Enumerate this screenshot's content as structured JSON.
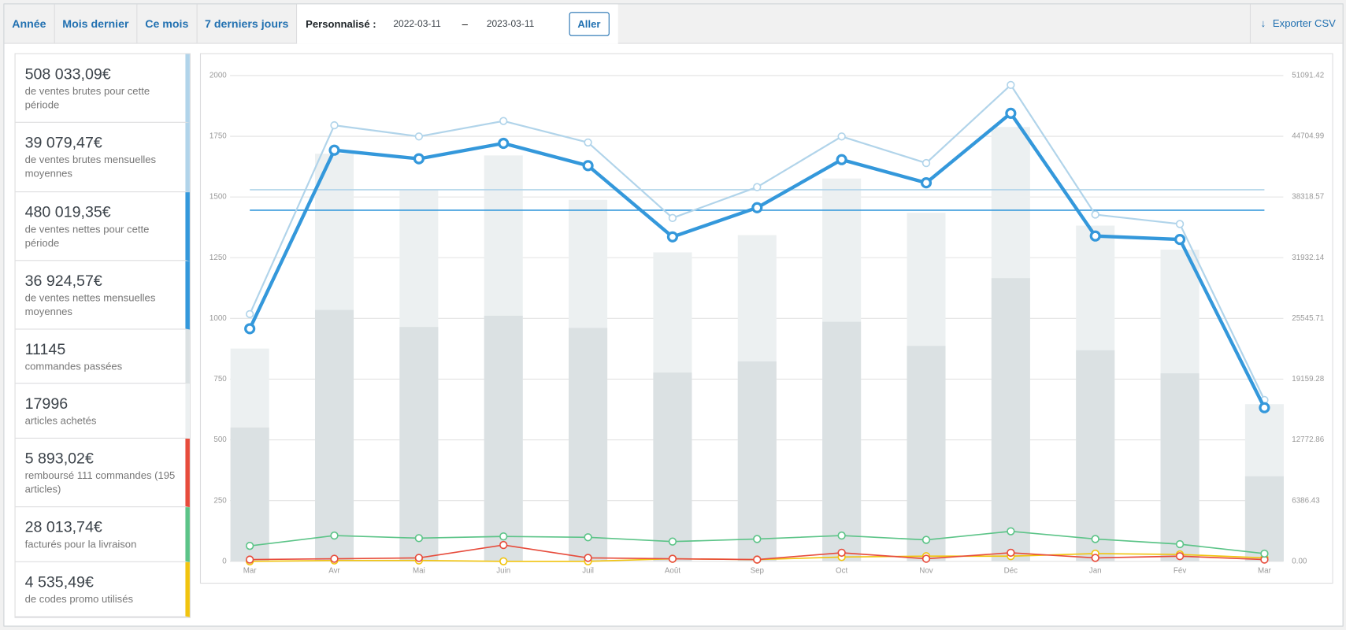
{
  "tabs": [
    "Année",
    "Mois dernier",
    "Ce mois",
    "7 derniers jours"
  ],
  "custom": {
    "label": "Personnalisé :",
    "start": "2022-03-11",
    "separator": "–",
    "end": "2023-03-11",
    "button": "Aller"
  },
  "export": "Exporter CSV",
  "stats": [
    {
      "value": "508 033,09€",
      "label": "de ventes brutes pour cette période",
      "color": "#b1d4ea"
    },
    {
      "value": "39 079,47€",
      "label": "de ventes brutes mensuelles moyennes",
      "color": "#b1d4ea"
    },
    {
      "value": "480 019,35€",
      "label": "de ventes nettes pour cette période",
      "color": "#3498db"
    },
    {
      "value": "36 924,57€",
      "label": "de ventes nettes mensuelles moyennes",
      "color": "#3498db"
    },
    {
      "value": "11145",
      "label": "commandes passées",
      "color": "#dbe1e3"
    },
    {
      "value": "17996",
      "label": "articles achetés",
      "color": "#ecf0f1"
    },
    {
      "value": "5 893,02€",
      "label": "remboursé 111 commandes (195 articles)",
      "color": "#e74c3c"
    },
    {
      "value": "28 013,74€",
      "label": "facturés pour la livraison",
      "color": "#5cc488"
    },
    {
      "value": "4 535,49€",
      "label": "de codes promo utilisés",
      "color": "#f1c40f"
    }
  ],
  "chart_data": {
    "type": "combo",
    "categories": [
      "Mar",
      "Avr",
      "Mai",
      "Juin",
      "Juil",
      "Août",
      "Sep",
      "Oct",
      "Nov",
      "Déc",
      "Jan",
      "Fév",
      "Mar"
    ],
    "ylim": [
      0,
      2000
    ],
    "yticks": [
      0,
      250,
      500,
      750,
      1000,
      1250,
      1500,
      1750,
      2000
    ],
    "y2lim": [
      0,
      51091.42
    ],
    "y2ticks": [
      {
        "value": 0,
        "label": "0.00"
      },
      6386.43,
      12772.86,
      19159.28,
      25545.71,
      31932.14,
      38318.57,
      44704.99,
      51091.42
    ],
    "grid": true,
    "series": [
      {
        "style": "bar",
        "color": "#ecf0f1",
        "values": [
          876,
          1678,
          1530,
          1671,
          1488,
          1272,
          1343,
          1576,
          1435,
          1788,
          1382,
          1283,
          647
        ]
      },
      {
        "style": "bar",
        "color": "#dbe1e3",
        "values": [
          551,
          1035,
          965,
          1011,
          961,
          777,
          823,
          986,
          887,
          1166,
          869,
          774,
          350
        ]
      },
      {
        "style": "line",
        "axis": "y2",
        "color": "#f1c40f",
        "values": [
          0,
          90,
          90,
          0,
          0,
          271,
          181,
          451,
          542,
          542,
          812,
          722,
          361
        ]
      },
      {
        "style": "line",
        "axis": "y2",
        "color": "#e74c3c",
        "values": [
          181,
          271,
          361,
          1715,
          361,
          271,
          181,
          903,
          271,
          903,
          361,
          542,
          181
        ]
      },
      {
        "style": "line",
        "axis": "y2",
        "color": "#5cc488",
        "values": [
          1625,
          2708,
          2437,
          2618,
          2528,
          2076,
          2347,
          2708,
          2257,
          3159,
          2347,
          1805,
          812
        ]
      },
      {
        "style": "line",
        "axis": "y2",
        "color": "#b1d4ea",
        "values": [
          25998,
          45857,
          44684,
          46308,
          44052,
          36108,
          39358,
          44684,
          41885,
          50100,
          36469,
          35476,
          16971
        ]
      },
      {
        "style": "line",
        "axis": "y2",
        "color": "#3498db",
        "width": 4,
        "values": [
          24463,
          43239,
          42337,
          43961,
          41614,
          34122,
          37191,
          42246,
          39809,
          47121,
          34212,
          33851,
          16158
        ]
      }
    ],
    "reference_lines": [
      {
        "axis": "y2",
        "color": "#b1d4ea",
        "value": 39079.47
      },
      {
        "axis": "y2",
        "color": "#3498db",
        "value": 36924.57
      }
    ]
  }
}
